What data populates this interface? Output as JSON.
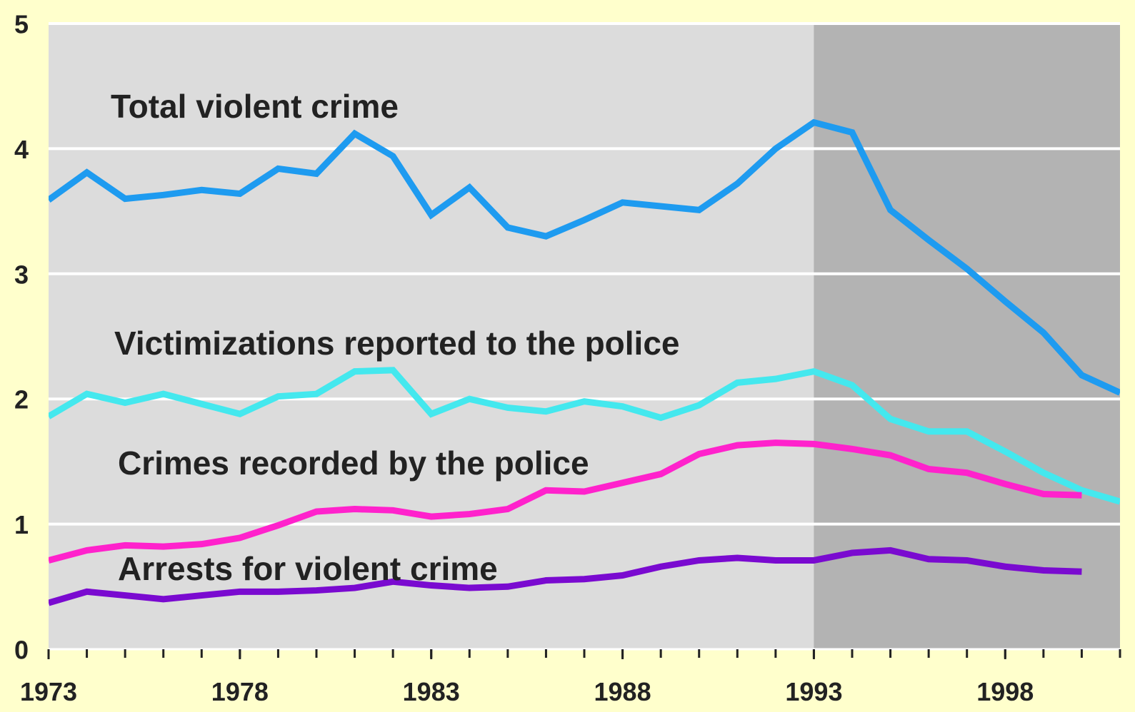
{
  "chart_data": {
    "type": "line",
    "x": [
      1973,
      1974,
      1975,
      1976,
      1977,
      1978,
      1979,
      1980,
      1981,
      1982,
      1983,
      1984,
      1985,
      1986,
      1987,
      1988,
      1989,
      1990,
      1991,
      1992,
      1993,
      1994,
      1995,
      1996,
      1997,
      1998,
      1999,
      2000,
      2001
    ],
    "series": [
      {
        "name": "Total violent crime",
        "color": "#1e9bf0",
        "values": [
          3.59,
          3.81,
          3.6,
          3.63,
          3.67,
          3.64,
          3.84,
          3.8,
          4.12,
          3.94,
          3.47,
          3.69,
          3.37,
          3.3,
          3.43,
          3.57,
          3.54,
          3.51,
          3.72,
          4.0,
          4.21,
          4.13,
          3.51,
          3.27,
          3.04,
          2.78,
          2.53,
          2.19,
          2.05
        ]
      },
      {
        "name": "Victimizations reported to the police",
        "color": "#44e8ee",
        "values": [
          1.86,
          2.04,
          1.97,
          2.04,
          1.96,
          1.88,
          2.02,
          2.04,
          2.22,
          2.23,
          1.88,
          2.0,
          1.93,
          1.9,
          1.98,
          1.94,
          1.85,
          1.95,
          2.13,
          2.16,
          2.22,
          2.11,
          1.84,
          1.74,
          1.74,
          1.58,
          1.41,
          1.27,
          1.18
        ]
      },
      {
        "name": "Crimes recorded by the police",
        "color": "#ff22cc",
        "values": [
          0.71,
          0.79,
          0.83,
          0.82,
          0.84,
          0.89,
          0.99,
          1.1,
          1.12,
          1.11,
          1.06,
          1.08,
          1.12,
          1.27,
          1.26,
          1.33,
          1.4,
          1.56,
          1.63,
          1.65,
          1.64,
          1.6,
          1.55,
          1.44,
          1.41,
          1.32,
          1.24,
          1.23,
          null
        ]
      },
      {
        "name": "Arrests for violent crime",
        "color": "#7a0ad0",
        "values": [
          0.37,
          0.46,
          0.43,
          0.4,
          0.43,
          0.46,
          0.46,
          0.47,
          0.49,
          0.54,
          0.51,
          0.49,
          0.5,
          0.55,
          0.56,
          0.59,
          0.66,
          0.71,
          0.73,
          0.71,
          0.71,
          0.77,
          0.79,
          0.72,
          0.71,
          0.66,
          0.63,
          0.62,
          null
        ]
      }
    ],
    "xlim": [
      1973,
      2001
    ],
    "xticks": [
      1973,
      1978,
      1983,
      1988,
      1993,
      1998
    ],
    "ylim": [
      0,
      5
    ],
    "yticks": [
      0,
      1,
      2,
      3,
      4,
      5
    ],
    "grid": true,
    "highlight_start": 1993
  }
}
